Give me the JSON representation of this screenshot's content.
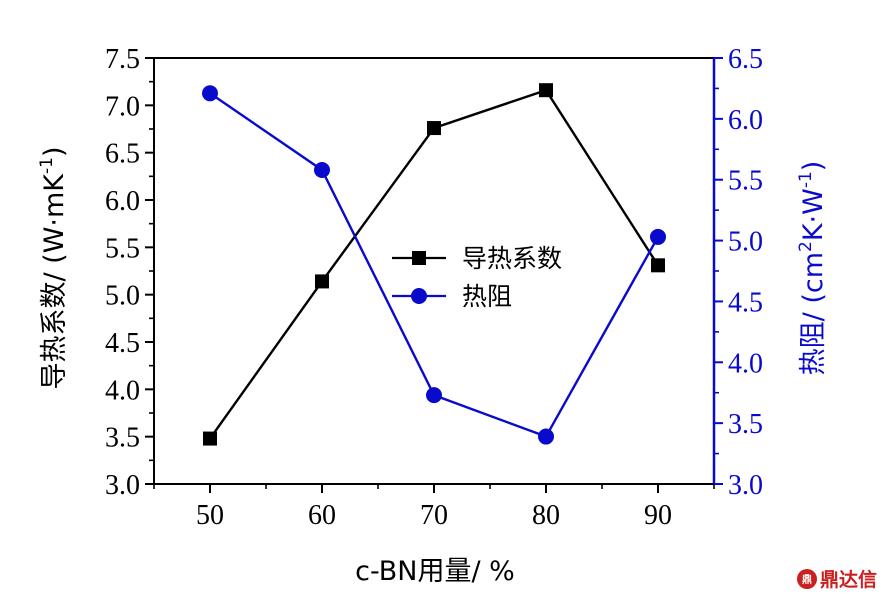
{
  "chart_data": {
    "type": "line",
    "x": [
      50,
      60,
      70,
      80,
      90
    ],
    "xlabel": "c-BN用量/ %",
    "xticks": [
      50,
      60,
      70,
      80,
      90
    ],
    "xlim": [
      45,
      95
    ],
    "ylabel_left": "导热系数/ (W·mK",
    "ylabel_left_sup": "-1",
    "ylabel_left_end": ")",
    "ylim_left": [
      3.0,
      7.5
    ],
    "yticks_left": [
      "3.0",
      "3.5",
      "4.0",
      "4.5",
      "5.0",
      "5.5",
      "6.0",
      "6.5",
      "7.0",
      "7.5"
    ],
    "ylabel_right_pre": "热阻/ (cm",
    "ylabel_right_sup1": "2",
    "ylabel_right_mid": "K·W",
    "ylabel_right_sup2": "-1",
    "ylabel_right_end": ")",
    "ylim_right": [
      3.0,
      6.5
    ],
    "yticks_right": [
      "3.0",
      "3.5",
      "4.0",
      "4.5",
      "5.0",
      "5.5",
      "6.0",
      "6.5"
    ],
    "series": [
      {
        "name": "导热系数",
        "axis": "left",
        "marker": "square",
        "color": "#000000",
        "values": [
          3.48,
          5.14,
          6.76,
          7.16,
          5.31
        ]
      },
      {
        "name": "热阻",
        "axis": "right",
        "marker": "circle",
        "color": "#0a0acd",
        "values": [
          6.21,
          5.58,
          3.73,
          3.39,
          5.03
        ]
      }
    ],
    "legend_position": "center"
  },
  "watermark": {
    "badge": "鼎",
    "text": "鼎达信"
  }
}
